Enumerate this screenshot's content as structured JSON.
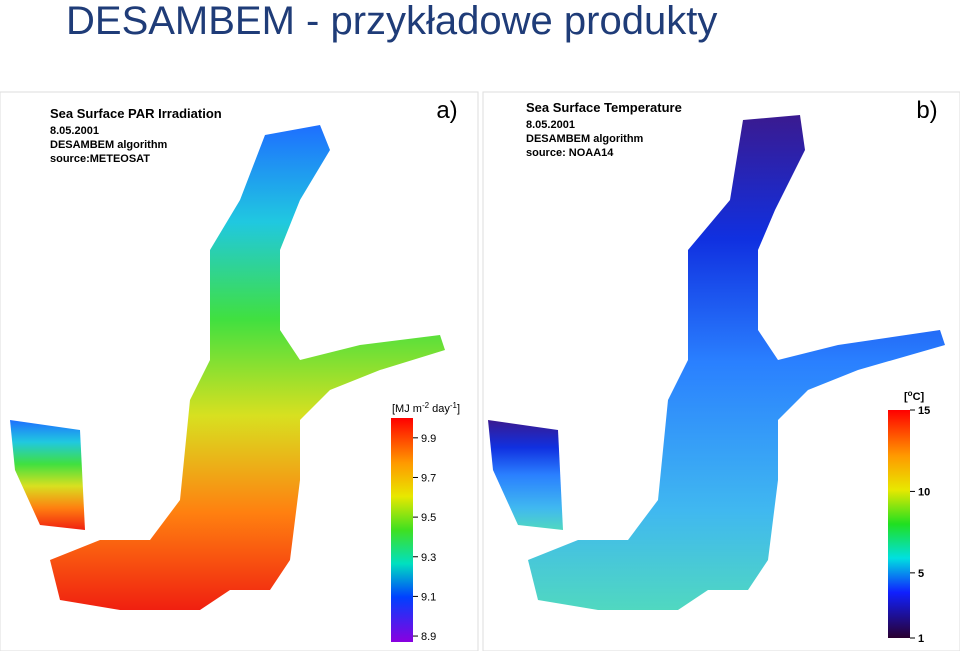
{
  "title": "DESAMBEM - przykładowe produkty",
  "panels": [
    {
      "heading": "Sea Surface PAR Irradiation",
      "lines": [
        "8.05.2001",
        "DESAMBEM algorithm",
        "source:METEOSAT"
      ],
      "label": "a)",
      "colorbar": {
        "unit": [
          "[MJ m",
          "-2",
          " day",
          "-1",
          "]"
        ],
        "range": [
          8.87,
          10.0
        ],
        "ticks": [
          9.9,
          9.7,
          9.5,
          9.3,
          9.1,
          8.9
        ]
      }
    },
    {
      "heading": "Sea Surface Temperature",
      "lines": [
        "8.05.2001",
        "DESAMBEM algorithm",
        "source: NOAA14"
      ],
      "label": "b)",
      "colorbar": {
        "unit": [
          "[",
          "o",
          "C]"
        ],
        "range": [
          1,
          15
        ],
        "ticks": [
          15,
          10,
          5,
          1
        ]
      }
    }
  ]
}
